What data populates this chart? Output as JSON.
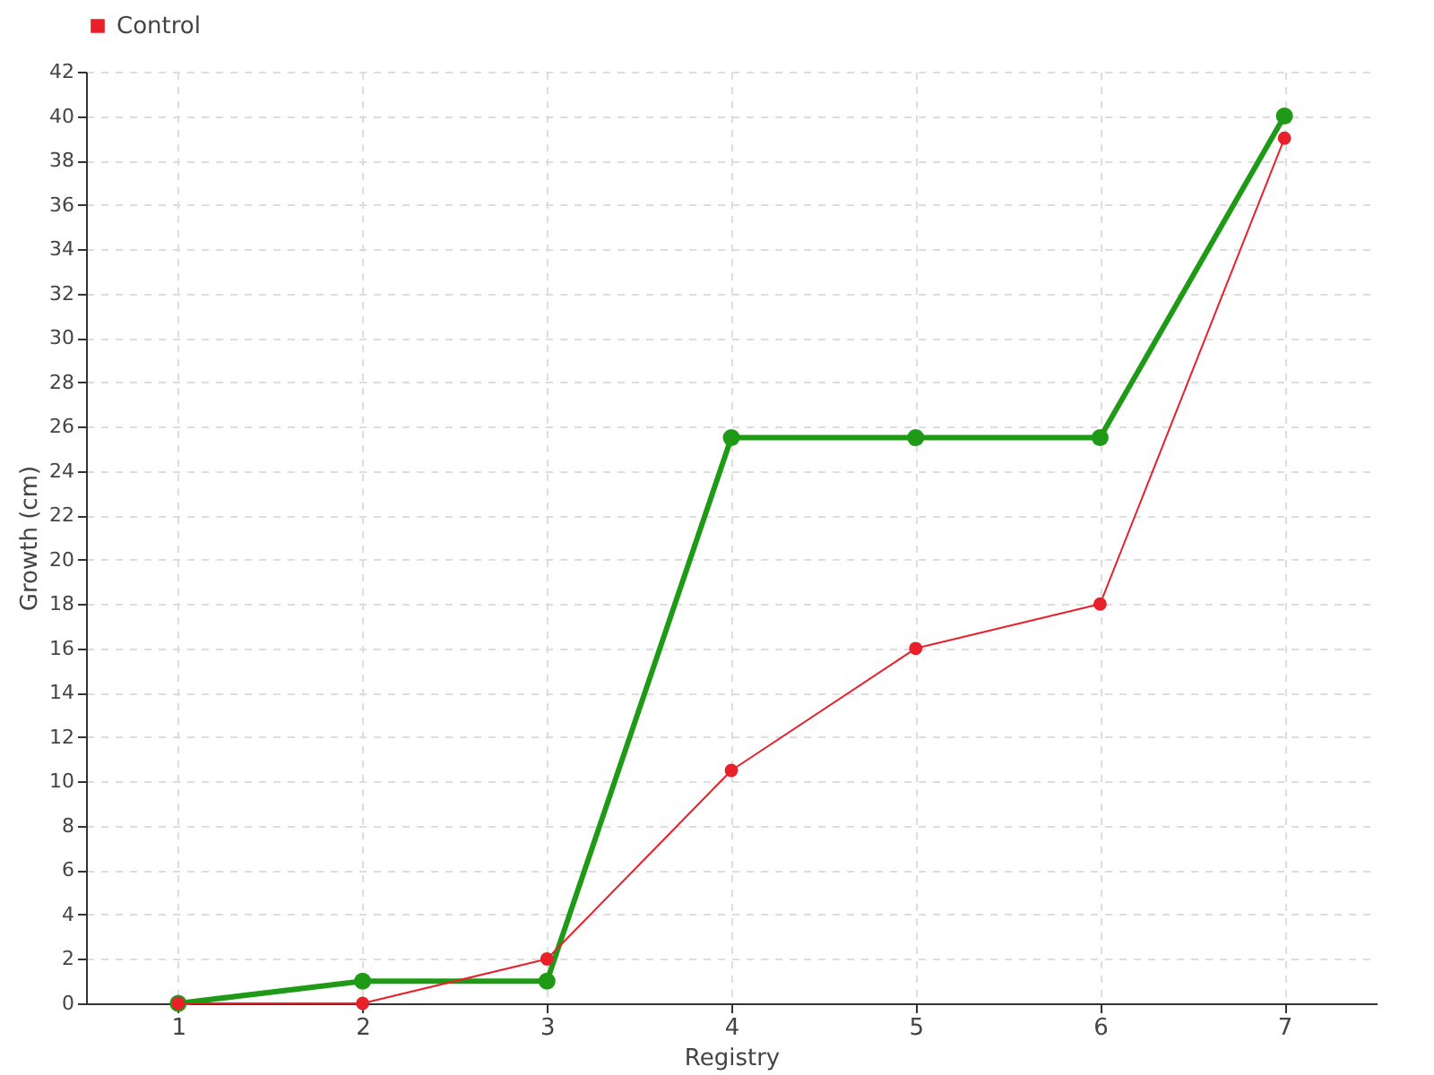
{
  "chart_data": {
    "type": "line",
    "xlabel": "Registry",
    "ylabel": "Growth (cm)",
    "categories": [
      "1",
      "2",
      "3",
      "4",
      "5",
      "6",
      "7"
    ],
    "series": [
      {
        "color": "#1f9a17",
        "values": [
          0,
          1,
          1,
          25.5,
          25.5,
          25.5,
          40
        ]
      },
      {
        "name": "Control",
        "color": "#e8202a",
        "values": [
          0,
          0,
          2,
          10.5,
          16,
          18,
          39
        ]
      }
    ],
    "ylim": [
      0,
      42
    ],
    "yticks": [
      0,
      2,
      4,
      6,
      8,
      10,
      12,
      14,
      16,
      18,
      20,
      22,
      24,
      26,
      28,
      30,
      32,
      34,
      36,
      38,
      40,
      42
    ],
    "grid": true,
    "legend": "top left",
    "marker": "circle",
    "line_style": "solid"
  }
}
